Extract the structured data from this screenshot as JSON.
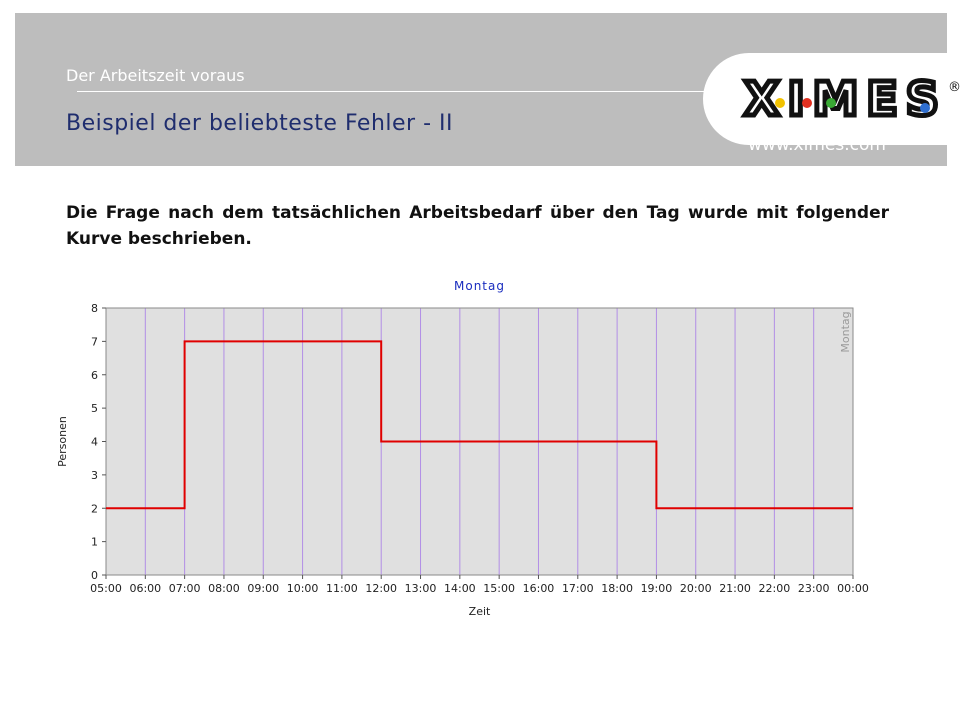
{
  "header": {
    "tagline": "Der Arbeitszeit voraus",
    "title": "Beispiel der beliebteste Fehler  - II",
    "logo_text": "XIMES",
    "registered_mark": "®",
    "url": "www.ximes.com"
  },
  "body": {
    "intro": "Die Frage nach dem tatsächlichen Arbeitsbedarf über den Tag wurde mit folgender Kurve beschrieben."
  },
  "colors": {
    "header_bg": "#bdbdbd",
    "title": "#1f2d6e",
    "plot_bg": "#e0e0e0",
    "grid": "#b28ee6",
    "line": "#e00000",
    "chart_title": "#1a2dbf"
  },
  "chart_data": {
    "type": "line",
    "title": "Montag",
    "xlabel": "Zeit",
    "ylabel": "Personen",
    "right_label": "Montag",
    "categories": [
      "05:00",
      "06:00",
      "07:00",
      "08:00",
      "09:00",
      "10:00",
      "11:00",
      "12:00",
      "13:00",
      "14:00",
      "15:00",
      "16:00",
      "17:00",
      "18:00",
      "19:00",
      "20:00",
      "21:00",
      "22:00",
      "23:00",
      "00:00"
    ],
    "yticks": [
      "0",
      "1",
      "2",
      "3",
      "4",
      "5",
      "6",
      "7",
      "8"
    ],
    "ylim": [
      0,
      8
    ],
    "grid": true,
    "step": true,
    "series": [
      {
        "points": [
          [
            0,
            2
          ],
          [
            2,
            2
          ],
          [
            2,
            7
          ],
          [
            7,
            7
          ],
          [
            7,
            4
          ],
          [
            14,
            4
          ],
          [
            14,
            2
          ],
          [
            19,
            2
          ]
        ]
      }
    ]
  }
}
